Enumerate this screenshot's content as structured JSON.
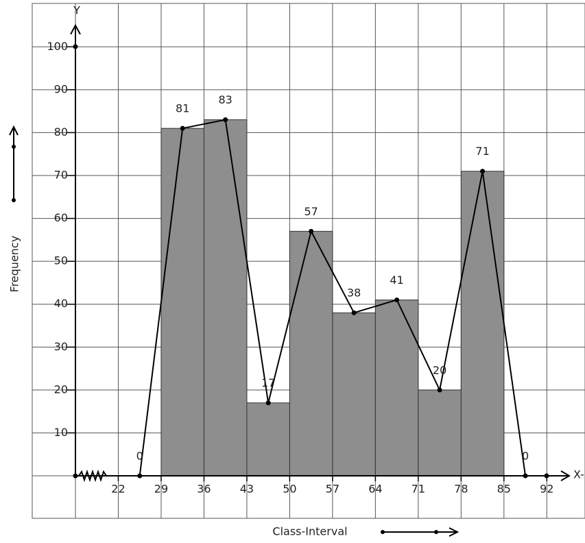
{
  "chart_data": {
    "type": "histogram",
    "x_label": "Class-Interval",
    "y_label": "Frequency",
    "x_axis_name": "X-",
    "y_axis_name": "Y",
    "bins": [
      29,
      36,
      43,
      50,
      57,
      64,
      71,
      78,
      85
    ],
    "values": [
      81,
      83,
      17,
      57,
      38,
      41,
      20,
      71
    ],
    "color": "#8e8e8e",
    "polygon": {
      "x": [
        25.5,
        32.5,
        39.5,
        46.5,
        53.5,
        60.5,
        67.5,
        74.5,
        81.5,
        88.5
      ],
      "values": [
        0,
        81,
        83,
        17,
        57,
        38,
        41,
        20,
        71,
        0
      ]
    },
    "xlim": [
      15,
      96
    ],
    "ylim": [
      0,
      105
    ],
    "xticks": [
      22,
      29,
      36,
      43,
      50,
      57,
      64,
      71,
      78,
      85,
      92
    ],
    "yticks": [
      10,
      20,
      30,
      40,
      50,
      60,
      70,
      80,
      90,
      100
    ],
    "grid": true
  }
}
